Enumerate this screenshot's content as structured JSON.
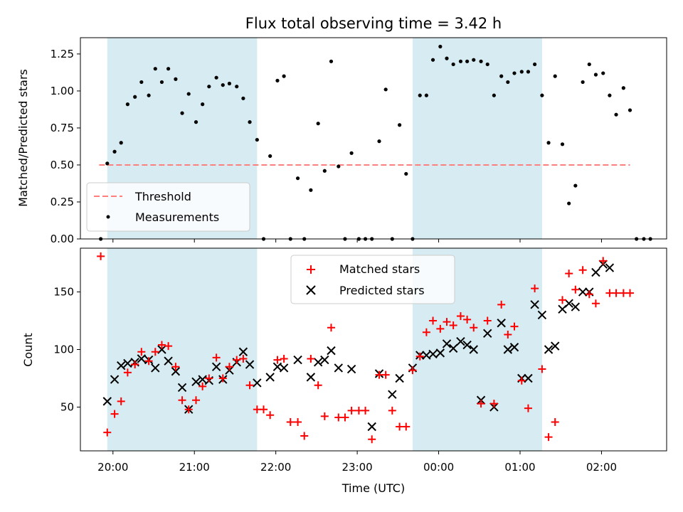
{
  "chart_data": [
    {
      "type": "scatter",
      "title": "Flux total observing time = 3.42 h",
      "xlabel": "",
      "ylabel": "Matched/Predicted stars",
      "x_unit": "hours UTC (continuous past midnight)",
      "xlim": [
        19.6,
        26.8
      ],
      "ylim": [
        0,
        1.36
      ],
      "yticks": [
        "0.00",
        "0.25",
        "0.50",
        "0.75",
        "1.00",
        "1.25"
      ],
      "shaded_intervals": [
        [
          19.93,
          21.77
        ],
        [
          23.68,
          25.27
        ]
      ],
      "shade_color": "#add8e6",
      "legend_position": "lower-left",
      "threshold": {
        "name": "Threshold",
        "y": 0.5,
        "x_range": [
          19.83,
          26.35
        ],
        "color": "#ff7f7f"
      },
      "series": [
        {
          "name": "Measurements",
          "color": "#000000",
          "points": [
            [
              19.85,
              0.0
            ],
            [
              19.93,
              0.51
            ],
            [
              20.02,
              0.59
            ],
            [
              20.1,
              0.65
            ],
            [
              20.18,
              0.91
            ],
            [
              20.27,
              0.96
            ],
            [
              20.35,
              1.06
            ],
            [
              20.44,
              0.97
            ],
            [
              20.52,
              1.15
            ],
            [
              20.6,
              1.06
            ],
            [
              20.68,
              1.15
            ],
            [
              20.77,
              1.08
            ],
            [
              20.85,
              0.85
            ],
            [
              20.93,
              0.98
            ],
            [
              21.02,
              0.79
            ],
            [
              21.1,
              0.91
            ],
            [
              21.18,
              1.03
            ],
            [
              21.27,
              1.09
            ],
            [
              21.35,
              1.04
            ],
            [
              21.43,
              1.05
            ],
            [
              21.52,
              1.03
            ],
            [
              21.6,
              0.95
            ],
            [
              21.68,
              0.79
            ],
            [
              21.77,
              0.67
            ],
            [
              21.85,
              0.0
            ],
            [
              21.93,
              0.56
            ],
            [
              22.02,
              1.07
            ],
            [
              22.1,
              1.1
            ],
            [
              22.18,
              0.0
            ],
            [
              22.27,
              0.41
            ],
            [
              22.35,
              0.0
            ],
            [
              22.43,
              0.33
            ],
            [
              22.52,
              0.78
            ],
            [
              22.6,
              0.46
            ],
            [
              22.68,
              1.2
            ],
            [
              22.77,
              0.49
            ],
            [
              22.85,
              0.0
            ],
            [
              22.93,
              0.58
            ],
            [
              23.02,
              0.0
            ],
            [
              23.1,
              0.0
            ],
            [
              23.18,
              0.0
            ],
            [
              23.27,
              0.66
            ],
            [
              23.35,
              1.01
            ],
            [
              23.43,
              0.0
            ],
            [
              23.52,
              0.77
            ],
            [
              23.6,
              0.44
            ],
            [
              23.68,
              0.0
            ],
            [
              23.77,
              0.97
            ],
            [
              23.85,
              0.97
            ],
            [
              23.93,
              1.21
            ],
            [
              24.02,
              1.3
            ],
            [
              24.1,
              1.22
            ],
            [
              24.18,
              1.18
            ],
            [
              24.27,
              1.2
            ],
            [
              24.35,
              1.2
            ],
            [
              24.43,
              1.21
            ],
            [
              24.52,
              1.2
            ],
            [
              24.6,
              1.18
            ],
            [
              24.68,
              0.97
            ],
            [
              24.77,
              1.1
            ],
            [
              24.85,
              1.06
            ],
            [
              24.93,
              1.12
            ],
            [
              25.02,
              1.13
            ],
            [
              25.1,
              1.13
            ],
            [
              25.18,
              1.18
            ],
            [
              25.27,
              0.97
            ],
            [
              25.35,
              0.65
            ],
            [
              25.43,
              1.1
            ],
            [
              25.52,
              0.64
            ],
            [
              25.6,
              0.24
            ],
            [
              25.68,
              0.36
            ],
            [
              25.77,
              1.06
            ],
            [
              25.85,
              1.18
            ],
            [
              25.93,
              1.11
            ],
            [
              26.02,
              1.12
            ],
            [
              26.1,
              0.97
            ],
            [
              26.18,
              0.84
            ],
            [
              26.27,
              1.02
            ],
            [
              26.35,
              0.87
            ],
            [
              26.43,
              0.0
            ],
            [
              26.52,
              0.0
            ],
            [
              26.6,
              0.0
            ]
          ]
        }
      ]
    },
    {
      "type": "scatter",
      "title": "",
      "xlabel": "Time (UTC)",
      "ylabel": "Count",
      "x_unit": "hours UTC (continuous past midnight)",
      "xlim": [
        19.6,
        26.8
      ],
      "ylim": [
        12,
        188
      ],
      "yticks": [
        "50",
        "100",
        "150"
      ],
      "xticks": [
        "20:00",
        "21:00",
        "22:00",
        "23:00",
        "00:00",
        "01:00",
        "02:00"
      ],
      "shaded_intervals": [
        [
          19.93,
          21.77
        ],
        [
          23.68,
          25.27
        ]
      ],
      "shade_color": "#add8e6",
      "legend_position": "upper-center",
      "series": [
        {
          "name": "Matched stars",
          "color": "#ff0000",
          "marker": "plus",
          "points": [
            [
              19.85,
              181
            ],
            [
              19.93,
              28
            ],
            [
              20.02,
              44
            ],
            [
              20.1,
              55
            ],
            [
              20.18,
              80
            ],
            [
              20.27,
              87
            ],
            [
              20.35,
              98
            ],
            [
              20.44,
              90
            ],
            [
              20.52,
              98
            ],
            [
              20.6,
              104
            ],
            [
              20.68,
              103
            ],
            [
              20.77,
              85
            ],
            [
              20.85,
              56
            ],
            [
              20.93,
              48
            ],
            [
              21.02,
              56
            ],
            [
              21.1,
              68
            ],
            [
              21.18,
              75
            ],
            [
              21.27,
              93
            ],
            [
              21.35,
              75
            ],
            [
              21.43,
              85
            ],
            [
              21.52,
              91
            ],
            [
              21.6,
              92
            ],
            [
              21.68,
              69
            ],
            [
              21.77,
              48
            ],
            [
              21.85,
              48
            ],
            [
              21.93,
              43
            ],
            [
              22.02,
              91
            ],
            [
              22.1,
              92
            ],
            [
              22.18,
              37
            ],
            [
              22.27,
              37
            ],
            [
              22.35,
              25
            ],
            [
              22.43,
              92
            ],
            [
              22.52,
              69
            ],
            [
              22.6,
              42
            ],
            [
              22.68,
              119
            ],
            [
              22.77,
              41
            ],
            [
              22.85,
              41
            ],
            [
              22.93,
              47
            ],
            [
              23.02,
              47
            ],
            [
              23.1,
              47
            ],
            [
              23.18,
              22
            ],
            [
              23.27,
              78
            ],
            [
              23.35,
              78
            ],
            [
              23.43,
              47
            ],
            [
              23.52,
              33
            ],
            [
              23.6,
              33
            ],
            [
              23.68,
              82
            ],
            [
              23.77,
              94
            ],
            [
              23.85,
              115
            ],
            [
              23.93,
              125
            ],
            [
              24.02,
              118
            ],
            [
              24.1,
              124
            ],
            [
              24.18,
              121
            ],
            [
              24.27,
              129
            ],
            [
              24.35,
              126
            ],
            [
              24.43,
              119
            ],
            [
              24.52,
              53
            ],
            [
              24.6,
              125
            ],
            [
              24.68,
              53
            ],
            [
              24.77,
              139
            ],
            [
              24.85,
              113
            ],
            [
              24.93,
              120
            ],
            [
              25.02,
              73
            ],
            [
              25.1,
              49
            ],
            [
              25.18,
              153
            ],
            [
              25.27,
              83
            ],
            [
              25.35,
              24
            ],
            [
              25.43,
              37
            ],
            [
              25.52,
              143
            ],
            [
              25.6,
              166
            ],
            [
              25.68,
              152
            ],
            [
              25.77,
              169
            ],
            [
              25.85,
              148
            ],
            [
              25.93,
              140
            ],
            [
              26.02,
              177
            ],
            [
              26.1,
              149
            ],
            [
              26.18,
              149
            ],
            [
              26.27,
              149
            ],
            [
              26.35,
              149
            ]
          ]
        },
        {
          "name": "Predicted stars",
          "color": "#000000",
          "marker": "x",
          "points": [
            [
              19.93,
              55
            ],
            [
              20.02,
              74
            ],
            [
              20.1,
              86
            ],
            [
              20.18,
              88
            ],
            [
              20.27,
              89
            ],
            [
              20.35,
              92
            ],
            [
              20.44,
              91
            ],
            [
              20.52,
              84
            ],
            [
              20.6,
              100
            ],
            [
              20.68,
              90
            ],
            [
              20.77,
              81
            ],
            [
              20.85,
              67
            ],
            [
              20.93,
              48
            ],
            [
              21.02,
              72
            ],
            [
              21.1,
              74
            ],
            [
              21.18,
              73
            ],
            [
              21.27,
              85
            ],
            [
              21.35,
              74
            ],
            [
              21.43,
              82
            ],
            [
              21.52,
              89
            ],
            [
              21.6,
              98
            ],
            [
              21.68,
              87
            ],
            [
              21.77,
              71
            ],
            [
              21.93,
              76
            ],
            [
              22.02,
              85
            ],
            [
              22.1,
              84
            ],
            [
              22.27,
              91
            ],
            [
              22.43,
              76
            ],
            [
              22.52,
              89
            ],
            [
              22.6,
              91
            ],
            [
              22.68,
              99
            ],
            [
              22.77,
              84
            ],
            [
              22.93,
              83
            ],
            [
              23.18,
              33
            ],
            [
              23.27,
              79
            ],
            [
              23.43,
              61
            ],
            [
              23.52,
              75
            ],
            [
              23.68,
              84
            ],
            [
              23.77,
              95
            ],
            [
              23.85,
              95
            ],
            [
              23.93,
              96
            ],
            [
              24.02,
              97
            ],
            [
              24.1,
              105
            ],
            [
              24.18,
              101
            ],
            [
              24.27,
              107
            ],
            [
              24.35,
              104
            ],
            [
              24.43,
              100
            ],
            [
              24.52,
              56
            ],
            [
              24.6,
              114
            ],
            [
              24.68,
              50
            ],
            [
              24.77,
              123
            ],
            [
              24.85,
              100
            ],
            [
              24.93,
              102
            ],
            [
              25.02,
              75
            ],
            [
              25.1,
              75
            ],
            [
              25.18,
              139
            ],
            [
              25.27,
              130
            ],
            [
              25.35,
              100
            ],
            [
              25.43,
              103
            ],
            [
              25.52,
              135
            ],
            [
              25.6,
              140
            ],
            [
              25.68,
              137
            ],
            [
              25.77,
              150
            ],
            [
              25.85,
              150
            ],
            [
              25.93,
              167
            ],
            [
              26.02,
              174
            ],
            [
              26.1,
              171
            ]
          ]
        }
      ]
    }
  ]
}
